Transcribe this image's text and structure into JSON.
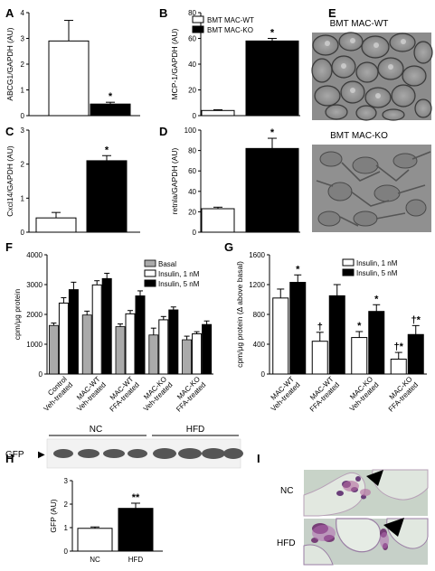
{
  "panels": {
    "A": {
      "letter": "A"
    },
    "B": {
      "letter": "B"
    },
    "C": {
      "letter": "C"
    },
    "D": {
      "letter": "D"
    },
    "E": {
      "letter": "E",
      "top_label": "BMT MAC-WT",
      "bottom_label": "BMT MAC-KO"
    },
    "F": {
      "letter": "F"
    },
    "G": {
      "letter": "G"
    },
    "H": {
      "letter": "H",
      "blot_label": "GFP",
      "group1": "NC",
      "group2": "HFD"
    },
    "I": {
      "letter": "I",
      "top_label": "NC",
      "bottom_label": "HFD"
    }
  },
  "colors": {
    "black": "#000000",
    "white": "#ffffff",
    "gray": "#aaaaaa"
  },
  "chart_data": [
    {
      "id": "A",
      "type": "bar",
      "ylabel": "ABCG1/GAPDH (AU)",
      "ylim": [
        0,
        4
      ],
      "yticks": [
        "0",
        "1",
        "2",
        "3",
        "4"
      ],
      "series": [
        {
          "name": "BMT MAC-WT",
          "values": [
            2.9
          ],
          "err": [
            0.8
          ]
        },
        {
          "name": "BMT MAC-KO",
          "values": [
            0.45
          ],
          "err": [
            0.07
          ]
        }
      ],
      "annotations": [
        "*"
      ]
    },
    {
      "id": "B",
      "type": "bar",
      "ylabel": "MCP-1/GAPDH (AU)",
      "ylim": [
        0,
        80
      ],
      "yticks": [
        "0",
        "20",
        "40",
        "60",
        "80"
      ],
      "legend": [
        "BMT MAC-WT",
        "BMT MAC-KO"
      ],
      "series": [
        {
          "name": "BMT MAC-WT",
          "values": [
            4
          ],
          "err": [
            0.6
          ]
        },
        {
          "name": "BMT MAC-KO",
          "values": [
            58
          ],
          "err": [
            2
          ]
        }
      ],
      "annotations": [
        "*"
      ]
    },
    {
      "id": "C",
      "type": "bar",
      "ylabel": "Cxcl14/GAPDH (AU)",
      "ylim": [
        0,
        3
      ],
      "yticks": [
        "0",
        "1",
        "2",
        "3"
      ],
      "series": [
        {
          "name": "BMT MAC-WT",
          "values": [
            0.42
          ],
          "err": [
            0.16
          ]
        },
        {
          "name": "BMT MAC-KO",
          "values": [
            2.1
          ],
          "err": [
            0.15
          ]
        }
      ],
      "annotations": [
        "*"
      ]
    },
    {
      "id": "D",
      "type": "bar",
      "ylabel": "retnla/GAPDH (AU)",
      "ylim": [
        0,
        100
      ],
      "yticks": [
        "0",
        "20",
        "40",
        "60",
        "80",
        "100"
      ],
      "series": [
        {
          "name": "BMT MAC-WT",
          "values": [
            23
          ],
          "err": [
            1.5
          ]
        },
        {
          "name": "BMT MAC-KO",
          "values": [
            82
          ],
          "err": [
            10
          ]
        }
      ],
      "annotations": [
        "*"
      ]
    },
    {
      "id": "F",
      "type": "bar",
      "ylabel": "cpm/μg protein",
      "ylim": [
        0,
        4000
      ],
      "yticks": [
        "0",
        "1000",
        "2000",
        "3000",
        "4000"
      ],
      "categories": [
        "Control Veh-treated",
        "MAC-WT Veh-treated",
        "MAC-WT FFA-treated",
        "MAC-KO Veh-treated",
        "MAC-KO FFA-treated"
      ],
      "category_lines": [
        [
          "Control",
          "Veh-treated"
        ],
        [
          "MAC-WT",
          "Veh-treated"
        ],
        [
          "MAC-WT",
          "FFA-treated"
        ],
        [
          "MAC-KO",
          "Veh-treated"
        ],
        [
          "MAC-KO",
          "FFA-treated"
        ]
      ],
      "legend": [
        "Basal",
        "Insulin, 1 nM",
        "Insulin, 5 nM"
      ],
      "series": [
        {
          "name": "Basal",
          "values": [
            1630,
            1980,
            1590,
            1310,
            1150
          ],
          "err": [
            80,
            130,
            90,
            230,
            120
          ]
        },
        {
          "name": "Insulin, 1 nM",
          "values": [
            2380,
            2990,
            2020,
            1820,
            1350
          ],
          "err": [
            180,
            140,
            110,
            110,
            70
          ]
        },
        {
          "name": "Insulin, 5 nM",
          "values": [
            2830,
            3200,
            2620,
            2150,
            1660
          ],
          "err": [
            250,
            180,
            170,
            100,
            120
          ]
        }
      ]
    },
    {
      "id": "G",
      "type": "bar",
      "ylabel": "cpm/μg protein (Δ above basal)",
      "ylim": [
        0,
        1600
      ],
      "yticks": [
        "0",
        "400",
        "800",
        "1200",
        "1600"
      ],
      "categories": [
        "MAC-WT Veh-treated",
        "MAC-WT FFA-treated",
        "MAC-KO Veh-treated",
        "MAC-KO FFA-treated"
      ],
      "category_lines": [
        [
          "MAC-WT",
          "Veh-treated"
        ],
        [
          "MAC-WT",
          "FFA-treated"
        ],
        [
          "MAC-KO",
          "Veh-treated"
        ],
        [
          "MAC-KO",
          "FFA-treated"
        ]
      ],
      "legend": [
        "Insulin, 1 nM",
        "Insulin, 5 nM"
      ],
      "series": [
        {
          "name": "Insulin, 1 nM",
          "values": [
            1020,
            440,
            490,
            200
          ],
          "err": [
            120,
            120,
            80,
            90
          ],
          "marks": [
            "",
            "†",
            "*",
            "†*"
          ]
        },
        {
          "name": "Insulin, 5 nM",
          "values": [
            1230,
            1050,
            840,
            530
          ],
          "err": [
            100,
            150,
            90,
            120
          ],
          "marks": [
            "*",
            "",
            "*",
            "†*"
          ]
        }
      ]
    },
    {
      "id": "H",
      "type": "bar",
      "ylabel": "GFP (AU)",
      "ylim": [
        0,
        3
      ],
      "yticks": [
        "0",
        "1",
        "2",
        "3"
      ],
      "categories": [
        "NC",
        "HFD"
      ],
      "series": [
        {
          "name": "GFP",
          "values": [
            0.97,
            1.82
          ],
          "err": [
            0.06,
            0.22
          ]
        }
      ],
      "annotations": [
        "**"
      ]
    }
  ]
}
